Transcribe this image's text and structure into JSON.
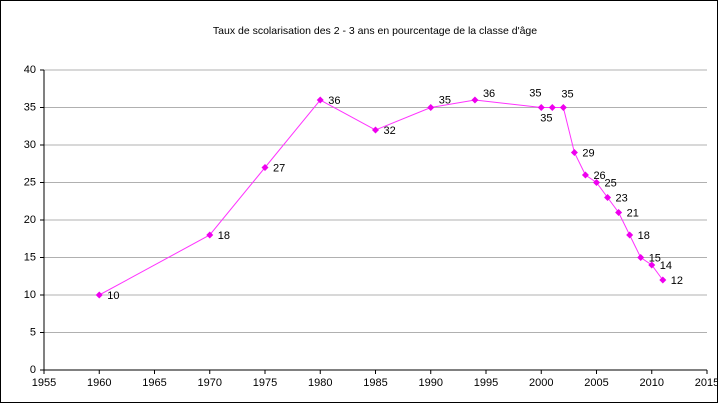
{
  "chart_data": {
    "type": "line",
    "title": "Taux de scolarisation des 2 - 3 ans en pourcentage de la classe d'âge",
    "x": [
      1960,
      1970,
      1975,
      1980,
      1985,
      1990,
      1994,
      2000,
      2001,
      2002,
      2003,
      2004,
      2005,
      2006,
      2007,
      2008,
      2009,
      2010,
      2011
    ],
    "values": [
      10,
      18,
      27,
      36,
      32,
      35,
      36,
      35,
      35,
      35,
      29,
      26,
      25,
      23,
      21,
      18,
      15,
      14,
      12
    ],
    "color": "#ff33ff",
    "xlim": [
      1955,
      2015
    ],
    "xticks": [
      1955,
      1960,
      1965,
      1970,
      1975,
      1980,
      1985,
      1990,
      1995,
      2000,
      2005,
      2010,
      2015
    ],
    "ylim": [
      0,
      40
    ],
    "yticks": [
      0,
      5,
      10,
      15,
      20,
      25,
      30,
      35,
      40
    ],
    "grid": true
  }
}
